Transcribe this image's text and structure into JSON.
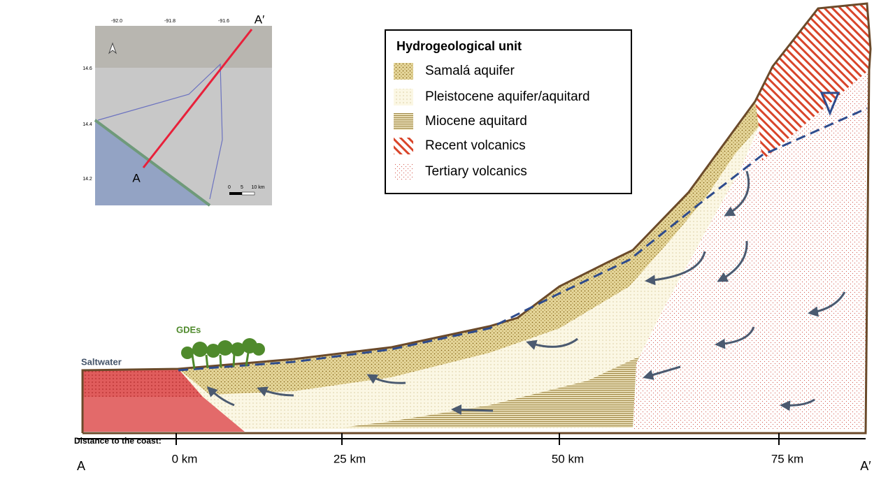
{
  "inset_map": {
    "lon_ticks": [
      "-92.0",
      "-91.8",
      "-91.6"
    ],
    "lat_ticks": [
      "14.6",
      "14.4",
      "14.2"
    ],
    "point_a": "A",
    "point_a_prime": "A′",
    "scale": [
      "0",
      "5",
      "10 km"
    ]
  },
  "legend": {
    "title": "Hydrogeological unit",
    "items": [
      "Samalá aquifer",
      "Pleistocene aquifer/aquitard",
      "Miocene aquitard",
      "Recent volcanics",
      "Tertiary volcanics"
    ]
  },
  "section": {
    "gdes": "GDEs",
    "saltwater": "Saltwater",
    "axis_title": "Distance to the coast:",
    "ticks": [
      "0 km",
      "25 km",
      "50 km",
      "75 km"
    ],
    "end_a": "A",
    "end_a_prime": "A′"
  }
}
